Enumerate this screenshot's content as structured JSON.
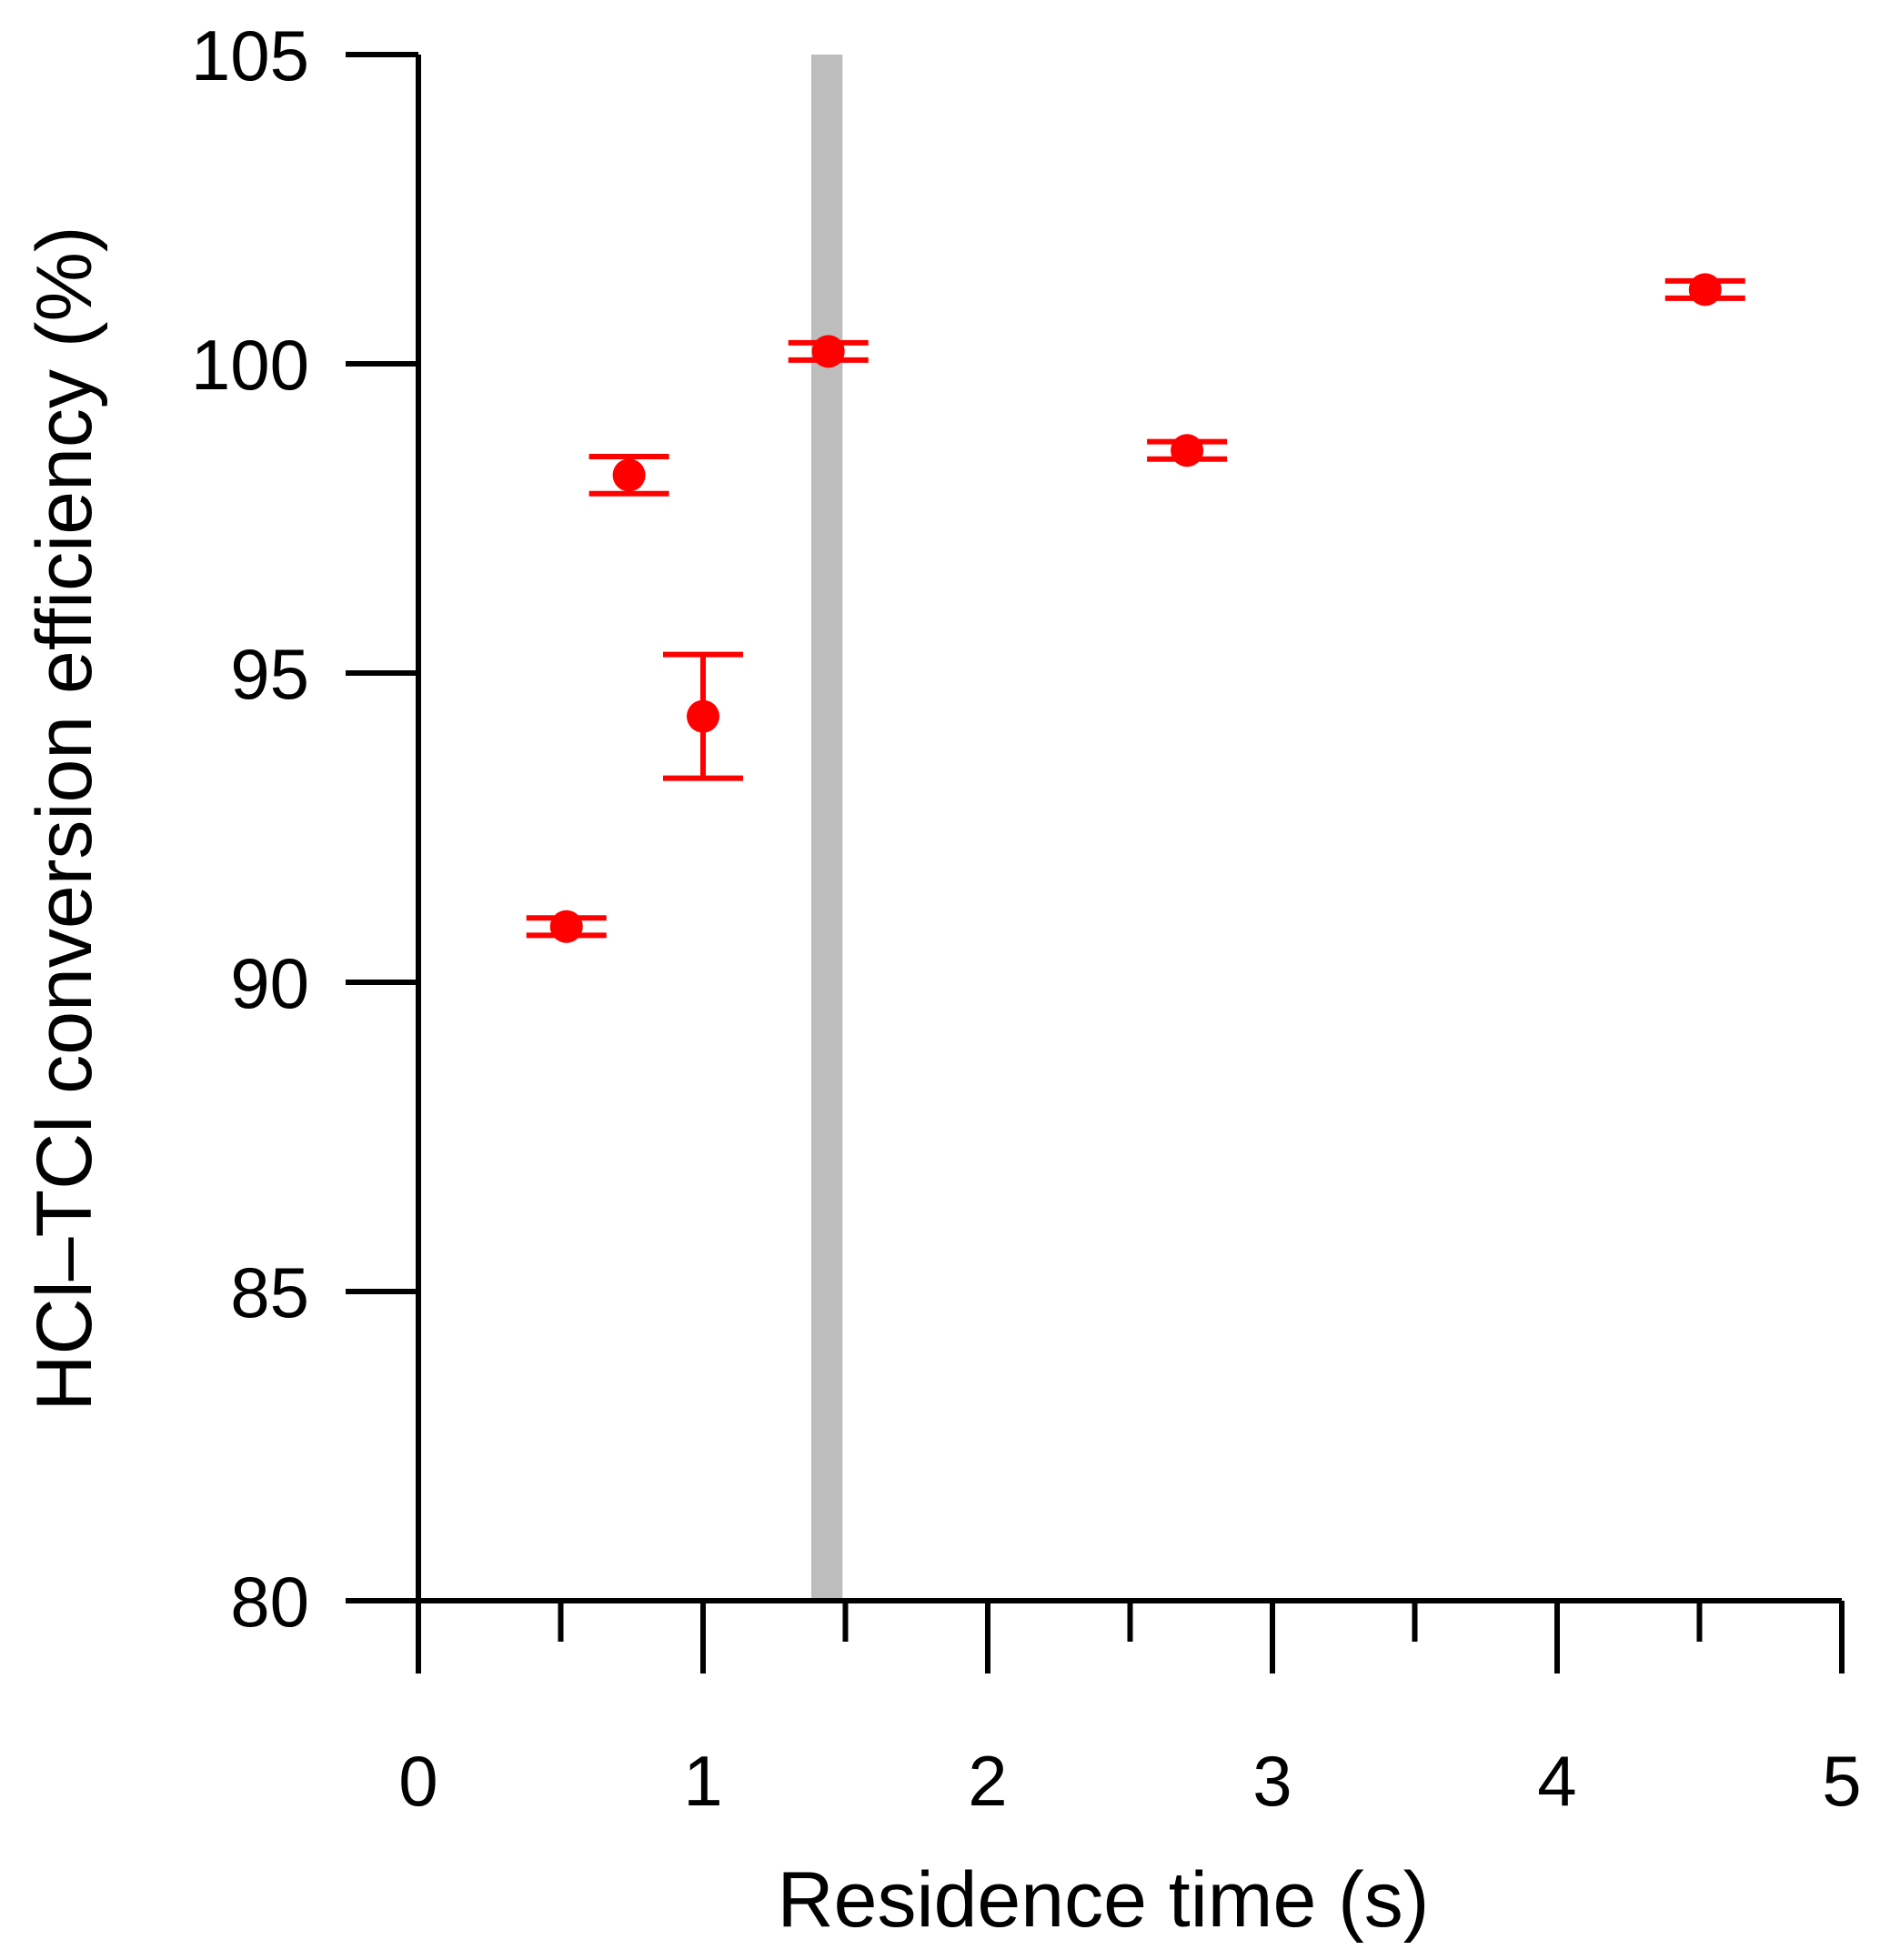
{
  "chart_data": {
    "type": "scatter",
    "xlabel": "Residence time (s)",
    "ylabel": "HCl–TCl conversion efficiency (%)",
    "xlim": [
      0,
      5
    ],
    "ylim": [
      80,
      105
    ],
    "x_ticks": [
      "0",
      "1",
      "2",
      "3",
      "4",
      "5"
    ],
    "y_ticks": [
      "80",
      "85",
      "90",
      "95",
      "100",
      "105"
    ],
    "x_minor_ticks": [
      0.5,
      1.5,
      2.5,
      3.5,
      4.5
    ],
    "grid": false,
    "legend": "none",
    "marker_color": "#ff0000",
    "band_color": "#bdbdbd",
    "shaded_band": {
      "x_start": 1.38,
      "x_end": 1.49
    },
    "points": [
      {
        "x": 0.52,
        "y": 90.9,
        "y_err_low": 90.76,
        "y_err_high": 91.04
      },
      {
        "x": 0.74,
        "y": 98.2,
        "y_err_low": 97.9,
        "y_err_high": 98.5
      },
      {
        "x": 1.0,
        "y": 94.3,
        "y_err_low": 93.3,
        "y_err_high": 95.3
      },
      {
        "x": 1.44,
        "y": 100.2,
        "y_err_low": 100.06,
        "y_err_high": 100.34
      },
      {
        "x": 2.7,
        "y": 98.6,
        "y_err_low": 98.46,
        "y_err_high": 98.74
      },
      {
        "x": 4.52,
        "y": 101.2,
        "y_err_low": 101.06,
        "y_err_high": 101.34
      }
    ]
  }
}
